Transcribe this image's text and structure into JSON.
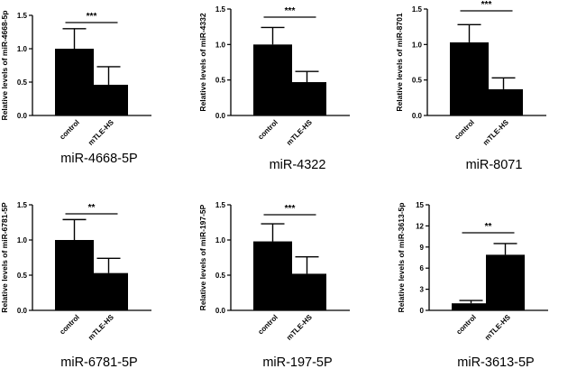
{
  "chart_data": [
    {
      "type": "bar",
      "caption": "miR-4668-5P",
      "ylabel": "Relative levels of miR-4668-5p",
      "categories": [
        "control",
        "mTLE-HS"
      ],
      "values": [
        1.0,
        0.46
      ],
      "errors": [
        0.3,
        0.27
      ],
      "ylim": [
        0,
        1.5
      ],
      "yticks": [
        "0.0",
        "0.5",
        "1.0",
        "1.5"
      ],
      "significance": "***"
    },
    {
      "type": "bar",
      "caption": "miR-4322",
      "ylabel": "Relative levels of miR-4332",
      "categories": [
        "control",
        "mTLE-HS"
      ],
      "values": [
        1.0,
        0.47
      ],
      "errors": [
        0.24,
        0.15
      ],
      "ylim": [
        0,
        1.5
      ],
      "yticks": [
        "0.0",
        "0.5",
        "1.0",
        "1.5"
      ],
      "significance": "***"
    },
    {
      "type": "bar",
      "caption": "miR-8071",
      "ylabel": "Relative levels of miR-8701",
      "categories": [
        "control",
        "mTLE-HS"
      ],
      "values": [
        1.03,
        0.37
      ],
      "errors": [
        0.25,
        0.16
      ],
      "ylim": [
        0,
        1.5
      ],
      "yticks": [
        "0.0",
        "0.5",
        "1.0",
        "1.5"
      ],
      "significance": "***"
    },
    {
      "type": "bar",
      "caption": "miR-6781-5P",
      "ylabel": "Relative levels of miR-6781-5P",
      "categories": [
        "control",
        "mTLE-HS"
      ],
      "values": [
        1.0,
        0.53
      ],
      "errors": [
        0.29,
        0.21
      ],
      "ylim": [
        0,
        1.5
      ],
      "yticks": [
        "0.0",
        "0.5",
        "1.0",
        "1.5"
      ],
      "significance": "**"
    },
    {
      "type": "bar",
      "caption": "miR-197-5P",
      "ylabel": "Relative levels of miR-197-5P",
      "categories": [
        "control",
        "mTLE-HS"
      ],
      "values": [
        0.98,
        0.52
      ],
      "errors": [
        0.25,
        0.24
      ],
      "ylim": [
        0,
        1.5
      ],
      "yticks": [
        "0.0",
        "0.5",
        "1.0",
        "1.5"
      ],
      "significance": "***"
    },
    {
      "type": "bar",
      "caption": "miR-3613-5P",
      "ylabel": "Relative levels of miR-3613-5p",
      "categories": [
        "control",
        "mTLE-HS"
      ],
      "values": [
        1.0,
        7.9
      ],
      "errors": [
        0.4,
        1.6
      ],
      "ylim": [
        0,
        15
      ],
      "yticks": [
        "0",
        "3",
        "6",
        "9",
        "12",
        "15"
      ],
      "significance": "**"
    }
  ]
}
